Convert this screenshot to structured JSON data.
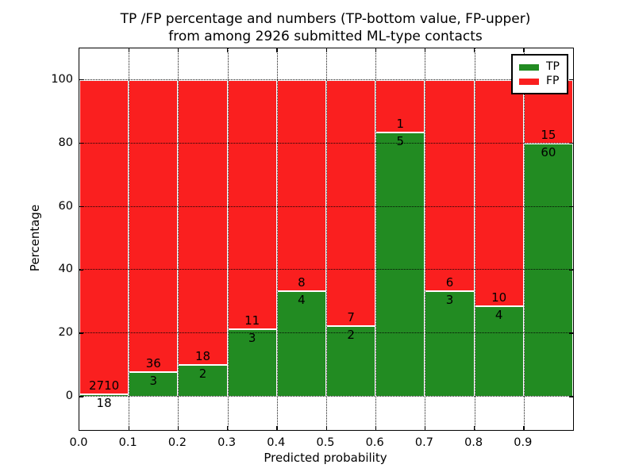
{
  "chart_data": {
    "type": "bar",
    "stacked": true,
    "normalized_to": 100,
    "title_line1": "TP /FP percentage and numbers (TP-bottom value, FP-upper)",
    "title_line2": "from among 2926 submitted ML-type contacts",
    "total_contacts": 2926,
    "xlabel": "Predicted probability",
    "ylabel": "Percentage",
    "bin_edges": [
      0.0,
      0.1,
      0.2,
      0.3,
      0.4,
      0.5,
      0.6,
      0.7,
      0.8,
      0.9,
      1.0
    ],
    "categories": [
      "0.0-0.1",
      "0.1-0.2",
      "0.2-0.3",
      "0.3-0.4",
      "0.4-0.5",
      "0.5-0.6",
      "0.6-0.7",
      "0.7-0.8",
      "0.8-0.9",
      "0.9-1.0"
    ],
    "series": [
      {
        "name": "TP",
        "color": "#228b22",
        "counts": [
          18,
          3,
          2,
          3,
          4,
          2,
          5,
          3,
          4,
          60
        ],
        "pct_of_bin": [
          0.66,
          7.69,
          10.0,
          21.43,
          33.33,
          22.22,
          83.33,
          33.33,
          28.57,
          80.0
        ]
      },
      {
        "name": "FP",
        "color": "#fa1f1f",
        "counts": [
          2710,
          36,
          18,
          11,
          8,
          7,
          1,
          6,
          10,
          15
        ],
        "pct_of_bin": [
          99.34,
          92.31,
          90.0,
          78.57,
          66.67,
          77.78,
          16.67,
          66.67,
          71.43,
          20.0
        ]
      }
    ],
    "xticks": [
      "0.0",
      "0.1",
      "0.2",
      "0.3",
      "0.4",
      "0.5",
      "0.6",
      "0.7",
      "0.8",
      "0.9"
    ],
    "yticks": [
      0,
      20,
      40,
      60,
      80,
      100
    ],
    "ylim": [
      -10.5,
      110
    ],
    "grid": "dotted",
    "legend": {
      "position": "upper right",
      "entries": [
        {
          "label": "TP",
          "color": "#228b22"
        },
        {
          "label": "FP",
          "color": "#fa1f1f"
        }
      ]
    }
  }
}
